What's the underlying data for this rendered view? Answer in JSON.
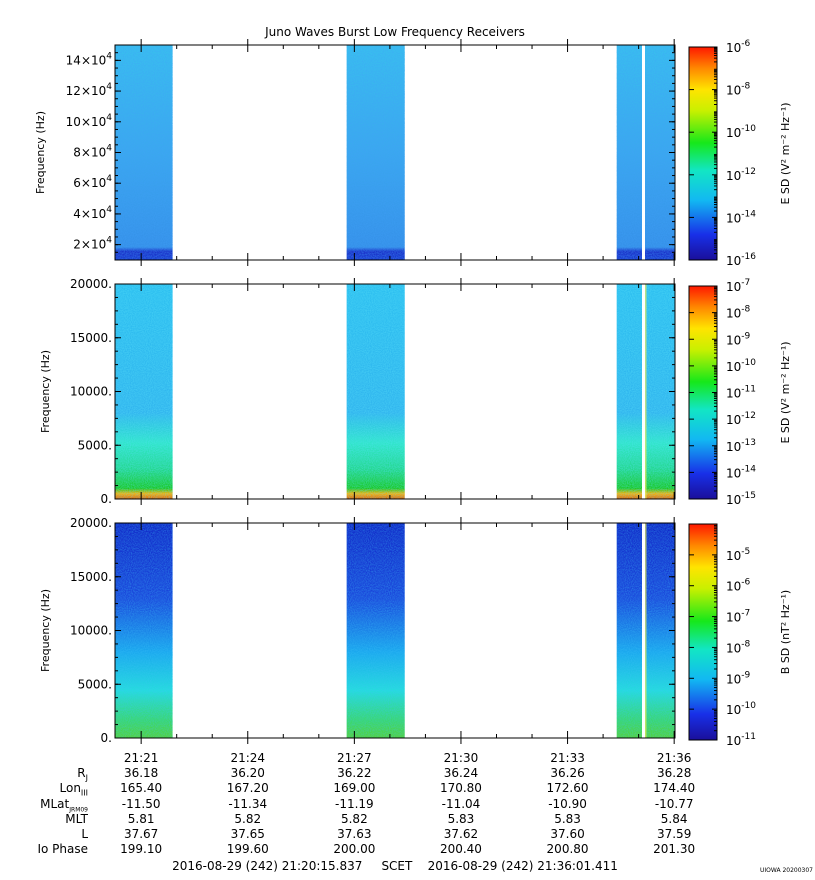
{
  "title": "Juno Waves Burst Low Frequency Receivers",
  "stamp": "UIOWA 20200307",
  "time_ticks": [
    "21:21",
    "21:24",
    "21:27",
    "21:30",
    "21:33",
    "21:36"
  ],
  "ephemeris": [
    {
      "label": "R",
      "sub": "J",
      "values": [
        "36.18",
        "36.20",
        "36.22",
        "36.24",
        "36.26",
        "36.28"
      ]
    },
    {
      "label": "Lon",
      "sub": "III",
      "values": [
        "165.40",
        "167.20",
        "169.00",
        "170.80",
        "172.60",
        "174.40"
      ]
    },
    {
      "label": "MLat",
      "sub": "JRM09",
      "values": [
        "-11.50",
        "-11.34",
        "-11.19",
        "-11.04",
        "-10.90",
        "-10.77"
      ]
    },
    {
      "label": "MLT",
      "sub": "",
      "values": [
        "5.81",
        "5.82",
        "5.82",
        "5.83",
        "5.83",
        "5.84"
      ]
    },
    {
      "label": "L",
      "sub": "",
      "values": [
        "37.67",
        "37.65",
        "37.63",
        "37.62",
        "37.60",
        "37.59"
      ]
    },
    {
      "label": "Io Phase",
      "sub": "",
      "values": [
        "199.10",
        "199.60",
        "200.00",
        "200.40",
        "200.80",
        "201.30"
      ]
    }
  ],
  "scet": {
    "start": "2016-08-29 (242) 21:20:15.837",
    "label": "SCET",
    "end": "2016-08-29 (242) 21:36:01.411"
  },
  "chart_data": [
    {
      "type": "heatmap",
      "title": "Juno Waves Burst Low Frequency Receivers",
      "ylabel": "Frequency (Hz)",
      "x_tick_labels": [
        "21:21",
        "21:24",
        "21:27",
        "21:30",
        "21:33",
        "21:36"
      ],
      "y_tick_labels": [
        "2×10^4",
        "4×10^4",
        "6×10^4",
        "8×10^4",
        "10×10^4",
        "12×10^4",
        "14×10^4"
      ],
      "ylim": [
        10000,
        150000
      ],
      "colorbar": {
        "label": "E SD (V² m⁻² Hz⁻¹)",
        "scale": "log",
        "tick_labels": [
          "10^-6",
          "10^-8",
          "10^-10",
          "10^-12",
          "10^-14",
          "10^-16"
        ],
        "range": [
          "1e-16",
          "1e-6"
        ]
      },
      "data_blocks": [
        {
          "start": "21:20:15",
          "end": "21:21:53"
        },
        {
          "start": "21:26:47",
          "end": "21:28:25"
        },
        {
          "start": "21:34:23",
          "end": "21:36:01"
        }
      ],
      "colors": {
        "background_level": "#3f9eea",
        "low_band": "#1a4fd0"
      }
    },
    {
      "type": "heatmap",
      "ylabel": "Frequency (Hz)",
      "x_tick_labels": [
        "21:21",
        "21:24",
        "21:27",
        "21:30",
        "21:33",
        "21:36"
      ],
      "y_tick_labels": [
        "0.",
        "5000.",
        "10000.",
        "15000.",
        "20000."
      ],
      "ylim": [
        0,
        20000
      ],
      "colorbar": {
        "label": "E SD (V² m⁻² Hz⁻¹)",
        "scale": "log",
        "tick_labels": [
          "10^-7",
          "10^-8",
          "10^-9",
          "10^-10",
          "10^-11",
          "10^-12",
          "10^-13",
          "10^-14",
          "10^-15"
        ],
        "range": [
          "1e-15",
          "1e-7"
        ]
      },
      "data_blocks": [
        {
          "start": "21:20:15",
          "end": "21:21:53"
        },
        {
          "start": "21:26:47",
          "end": "21:28:25"
        },
        {
          "start": "21:34:23",
          "end": "21:36:01"
        }
      ],
      "colors": {
        "background_level": "#39a8ec",
        "low_band": "#22c47a",
        "emission": "#f5a000"
      }
    },
    {
      "type": "heatmap",
      "ylabel": "Frequency (Hz)",
      "x_tick_labels": [
        "21:21",
        "21:24",
        "21:27",
        "21:30",
        "21:33",
        "21:36"
      ],
      "y_tick_labels": [
        "0.",
        "5000.",
        "10000.",
        "15000.",
        "20000."
      ],
      "ylim": [
        0,
        20000
      ],
      "colorbar": {
        "label": "B SD (nT² Hz⁻¹)",
        "scale": "log",
        "tick_labels": [
          "10^-5",
          "10^-6",
          "10^-7",
          "10^-8",
          "10^-9",
          "10^-10",
          "10^-11"
        ],
        "range": [
          "1e-11",
          "1e-4"
        ]
      },
      "data_blocks": [
        {
          "start": "21:20:15",
          "end": "21:21:53"
        },
        {
          "start": "21:26:47",
          "end": "21:28:25"
        },
        {
          "start": "21:34:23",
          "end": "21:36:01"
        }
      ],
      "colors": {
        "background_level": "#1533d6",
        "low_band": "#3bd07a"
      }
    }
  ]
}
